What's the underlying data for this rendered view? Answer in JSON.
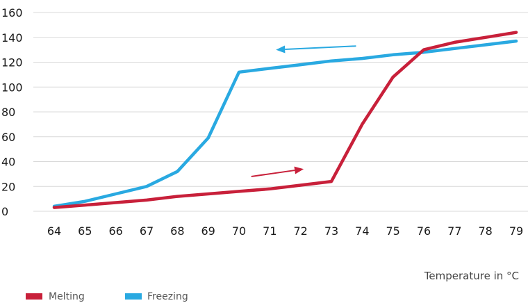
{
  "chart_data": {
    "type": "line",
    "title": "",
    "xlabel": "Temperature in °C",
    "ylabel": "",
    "x": [
      64,
      65,
      66,
      67,
      68,
      69,
      70,
      71,
      72,
      73,
      74,
      75,
      76,
      77,
      78,
      79
    ],
    "xlim": [
      64,
      79
    ],
    "ylim": [
      0,
      160
    ],
    "yticks": [
      0,
      20,
      40,
      60,
      80,
      100,
      120,
      140,
      160
    ],
    "grid": "horizontal",
    "legend_position": "bottom-left",
    "series": [
      {
        "name": "Melting",
        "color": "#c8203a",
        "values": [
          3,
          5,
          7,
          9,
          12,
          14,
          16,
          18,
          21,
          24,
          70,
          108,
          130,
          136,
          140,
          144
        ]
      },
      {
        "name": "Freezing",
        "color": "#29a9e1",
        "values": [
          4,
          8,
          14,
          20,
          32,
          59,
          112,
          115,
          118,
          121,
          123,
          126,
          128,
          131,
          134,
          137
        ]
      }
    ],
    "annotations": [
      {
        "type": "arrow",
        "series": "Melting",
        "direction": "right",
        "from": [
          70.4,
          28
        ],
        "to": [
          72.1,
          34
        ]
      },
      {
        "type": "arrow",
        "series": "Freezing",
        "direction": "left",
        "from": [
          73.8,
          133
        ],
        "to": [
          71.2,
          130
        ]
      }
    ]
  }
}
